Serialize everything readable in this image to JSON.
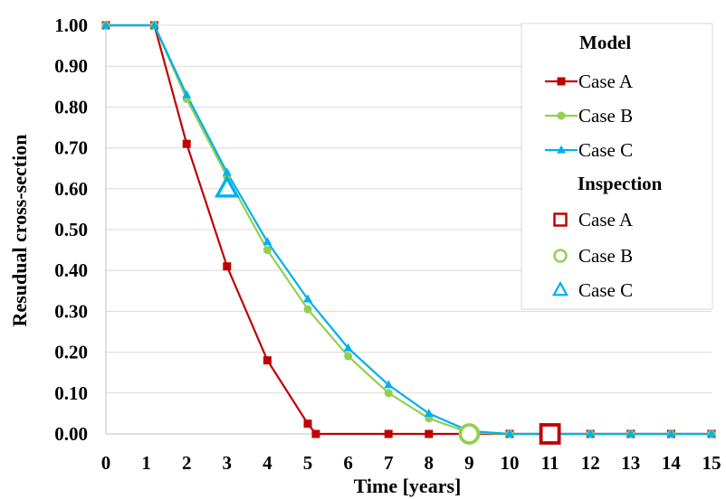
{
  "chart_data": {
    "type": "line",
    "xlabel": "Time [years]",
    "ylabel": "Resudual cross-section",
    "xlim": [
      0,
      15
    ],
    "ylim": [
      0,
      1.0
    ],
    "xticks": [
      "0",
      "1",
      "2",
      "3",
      "4",
      "5",
      "6",
      "7",
      "8",
      "9",
      "10",
      "11",
      "12",
      "13",
      "14",
      "15"
    ],
    "yticks": [
      "0.00",
      "0.10",
      "0.20",
      "0.30",
      "0.40",
      "0.50",
      "0.60",
      "0.70",
      "0.80",
      "0.90",
      "1.00"
    ],
    "grid": "horizontal",
    "legend_position": "top-right",
    "legend": {
      "model_heading": "Model",
      "inspection_heading": "Inspection"
    },
    "series": [
      {
        "name": "Case A",
        "group": "Model",
        "color": "#c00000",
        "marker": "square",
        "points": [
          [
            0,
            1.0
          ],
          [
            1.2,
            1.0
          ],
          [
            2,
            0.71
          ],
          [
            3,
            0.41
          ],
          [
            4,
            0.18
          ],
          [
            5,
            0.025
          ],
          [
            5.2,
            0
          ],
          [
            7,
            0
          ],
          [
            8,
            0
          ],
          [
            9,
            0
          ],
          [
            10,
            0
          ],
          [
            11,
            0
          ],
          [
            12,
            0
          ],
          [
            13,
            0
          ],
          [
            14,
            0
          ],
          [
            15,
            0
          ]
        ]
      },
      {
        "name": "Case B",
        "group": "Model",
        "color": "#92d050",
        "marker": "circle",
        "points": [
          [
            0,
            1.0
          ],
          [
            1.2,
            1.0
          ],
          [
            2,
            0.82
          ],
          [
            3,
            0.63
          ],
          [
            4,
            0.45
          ],
          [
            5,
            0.305
          ],
          [
            6,
            0.19
          ],
          [
            7,
            0.1
          ],
          [
            8,
            0.038
          ],
          [
            9,
            0.003
          ],
          [
            10,
            0
          ],
          [
            11,
            0
          ],
          [
            12,
            0
          ],
          [
            13,
            0
          ],
          [
            14,
            0
          ],
          [
            15,
            0
          ]
        ]
      },
      {
        "name": "Case C",
        "group": "Model",
        "color": "#00b0f0",
        "marker": "triangle",
        "points": [
          [
            0,
            1.0
          ],
          [
            1.2,
            1.0
          ],
          [
            2,
            0.83
          ],
          [
            3,
            0.64
          ],
          [
            4,
            0.47
          ],
          [
            5,
            0.33
          ],
          [
            6,
            0.21
          ],
          [
            7,
            0.12
          ],
          [
            8,
            0.05
          ],
          [
            9,
            0.007
          ],
          [
            10,
            0
          ],
          [
            11,
            0
          ],
          [
            12,
            0
          ],
          [
            13,
            0
          ],
          [
            14,
            0
          ],
          [
            15,
            0
          ]
        ]
      },
      {
        "name": "Case A",
        "group": "Inspection",
        "color": "#c00000",
        "marker": "open-square",
        "points": [
          [
            11,
            0
          ]
        ]
      },
      {
        "name": "Case B",
        "group": "Inspection",
        "color": "#92d050",
        "marker": "open-circle",
        "points": [
          [
            9,
            0
          ]
        ]
      },
      {
        "name": "Case C",
        "group": "Inspection",
        "color": "#00b0f0",
        "marker": "open-triangle",
        "points": [
          [
            3,
            0.6
          ]
        ]
      }
    ]
  }
}
